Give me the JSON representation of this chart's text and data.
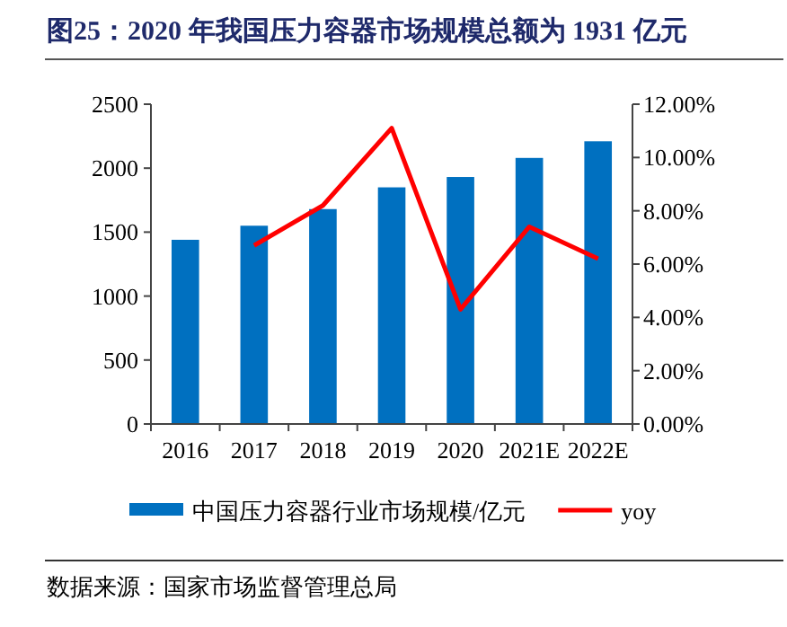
{
  "chart_data": {
    "type": "bar",
    "title": "图25：2020 年我国压力容器市场规模总额为 1931 亿元",
    "categories": [
      "2016",
      "2017",
      "2018",
      "2019",
      "2020",
      "2021E",
      "2022E"
    ],
    "series": [
      {
        "name": "中国压力容器行业市场规模/亿元",
        "color": "#0070c0",
        "values": [
          1440,
          1550,
          1680,
          1850,
          1931,
          2080,
          2210
        ]
      },
      {
        "name": "yoy",
        "type": "line",
        "axis": "y2",
        "color": "#ff0000",
        "values": [
          null,
          6.7,
          8.2,
          11.1,
          4.3,
          7.4,
          6.2
        ]
      }
    ],
    "ylim": [
      0,
      2500
    ],
    "yticks": [
      0,
      500,
      1000,
      1500,
      2000,
      2500
    ],
    "y2lim": [
      0,
      12
    ],
    "y2ticks": [
      {
        "value": 0,
        "label": "0.00%"
      },
      {
        "value": 2,
        "label": "2.00%"
      },
      {
        "value": 4,
        "label": "4.00%"
      },
      {
        "value": 6,
        "label": "6.00%"
      },
      {
        "value": 8,
        "label": "8.00%"
      },
      {
        "value": 10,
        "label": "10.00%"
      },
      {
        "value": 12,
        "label": "12.00%"
      }
    ],
    "grid": false,
    "legend": "bottom",
    "annotations": [
      "数据来源：国家市场监督管理总局"
    ]
  }
}
